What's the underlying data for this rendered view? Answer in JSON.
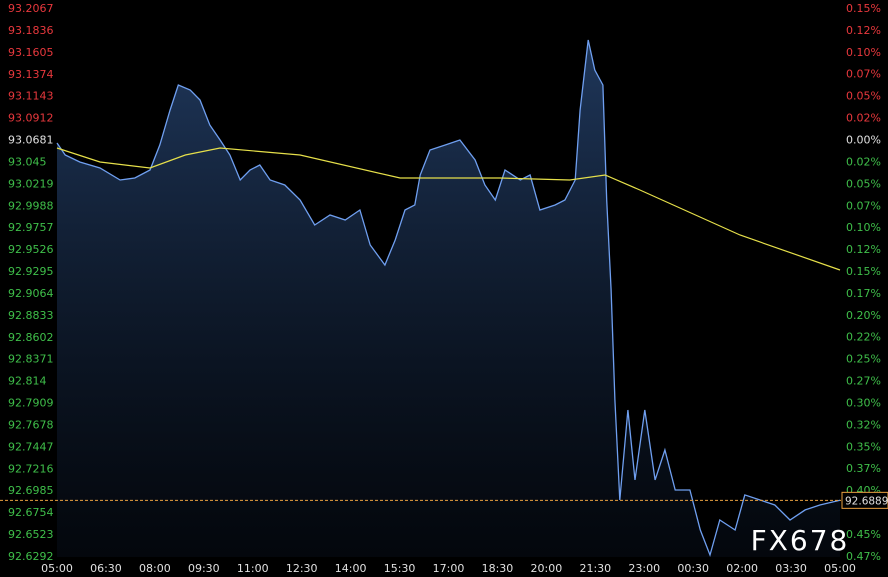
{
  "chart_data": {
    "type": "line",
    "watermark": "FX678",
    "base": 93.0681,
    "up_color": "#e8383d",
    "down_color": "#3fbf4a",
    "flat_color": "#e0e0e0",
    "xlim": [
      0,
      1440
    ],
    "xticks": [
      {
        "value": 0,
        "label": "05:00"
      },
      {
        "value": 90,
        "label": "06:30"
      },
      {
        "value": 180,
        "label": "08:00"
      },
      {
        "value": 270,
        "label": "09:30"
      },
      {
        "value": 360,
        "label": "11:00"
      },
      {
        "value": 450,
        "label": "12:30"
      },
      {
        "value": 540,
        "label": "14:00"
      },
      {
        "value": 630,
        "label": "15:30"
      },
      {
        "value": 720,
        "label": "17:00"
      },
      {
        "value": 810,
        "label": "18:30"
      },
      {
        "value": 900,
        "label": "20:00"
      },
      {
        "value": 990,
        "label": "21:30"
      },
      {
        "value": 1080,
        "label": "23:00"
      },
      {
        "value": 1170,
        "label": "00:30"
      },
      {
        "value": 1260,
        "label": "02:00"
      },
      {
        "value": 1350,
        "label": "03:30"
      },
      {
        "value": 1440,
        "label": "05:00"
      }
    ],
    "ylim": [
      92.6292,
      93.2067
    ],
    "yticks": [
      93.2067,
      93.1836,
      93.1605,
      93.1374,
      93.1143,
      93.0912,
      93.0681,
      93.045,
      93.0219,
      92.9988,
      92.9757,
      92.9526,
      92.9295,
      92.9064,
      92.8833,
      92.8602,
      92.8371,
      92.814,
      92.7909,
      92.7678,
      92.7447,
      92.7216,
      92.6985,
      92.6754,
      92.6523,
      92.6292
    ],
    "y2lim": [
      -0.4716,
      0.1489
    ],
    "y2ticks": [
      {
        "value": 0.1489,
        "label": "0.15%"
      },
      {
        "value": 0.1241,
        "label": "0.12%"
      },
      {
        "value": 0.0993,
        "label": "0.10%"
      },
      {
        "value": 0.0745,
        "label": "0.07%"
      },
      {
        "value": 0.0496,
        "label": "0.05%"
      },
      {
        "value": 0.0248,
        "label": "0.02%"
      },
      {
        "value": 0,
        "label": "0.00%"
      },
      {
        "value": -0.0248,
        "label": "0.02%"
      },
      {
        "value": -0.0496,
        "label": "0.05%"
      },
      {
        "value": -0.0745,
        "label": "0.07%"
      },
      {
        "value": -0.0993,
        "label": "0.10%"
      },
      {
        "value": -0.1241,
        "label": "0.12%"
      },
      {
        "value": -0.1489,
        "label": "0.15%"
      },
      {
        "value": -0.1737,
        "label": "0.17%"
      },
      {
        "value": -0.1985,
        "label": "0.20%"
      },
      {
        "value": -0.2233,
        "label": "0.22%"
      },
      {
        "value": -0.2482,
        "label": "0.25%"
      },
      {
        "value": -0.273,
        "label": "0.27%"
      },
      {
        "value": -0.2978,
        "label": "0.30%"
      },
      {
        "value": -0.3226,
        "label": "0.32%"
      },
      {
        "value": -0.3474,
        "label": "0.35%"
      },
      {
        "value": -0.3722,
        "label": "0.37%"
      },
      {
        "value": -0.397,
        "label": "0.40%"
      },
      {
        "value": -0.4467,
        "label": "0.45%"
      },
      {
        "value": -0.4716,
        "label": "0.47%"
      }
    ],
    "last_price": 92.6889,
    "last_color": "#e8a040",
    "series": [
      {
        "color": "#6f9ff0",
        "fill": true,
        "x": [
          0,
          15,
          42,
          79,
          116,
          143,
          171,
          189,
          208,
          223,
          245,
          263,
          281,
          300,
          318,
          337,
          355,
          373,
          392,
          419,
          447,
          474,
          502,
          530,
          557,
          576,
          603,
          622,
          640,
          658,
          668,
          686,
          714,
          741,
          769,
          787,
          806,
          824,
          852,
          870,
          888,
          916,
          934,
          953,
          962,
          977,
          989,
          1004,
          1011,
          1019,
          1026,
          1035,
          1050,
          1063,
          1081,
          1100,
          1118,
          1137,
          1164,
          1183,
          1201,
          1219,
          1247,
          1265,
          1293,
          1320,
          1348,
          1376,
          1403,
          1440
        ],
        "values": [
          93.0655,
          93.0528,
          93.0455,
          93.0391,
          93.0265,
          93.0286,
          93.037,
          93.0634,
          93.1003,
          93.1266,
          93.1213,
          93.1108,
          93.0845,
          93.0687,
          93.0528,
          93.0265,
          93.037,
          93.0423,
          93.0265,
          93.0212,
          93.0054,
          92.9791,
          92.9896,
          92.9843,
          92.9949,
          92.958,
          92.9369,
          92.9633,
          92.9949,
          93.0002,
          93.0318,
          93.0581,
          93.0634,
          93.0687,
          93.0476,
          93.0212,
          93.0054,
          93.037,
          93.0265,
          93.0318,
          92.9949,
          93.0002,
          93.0054,
          93.0265,
          93.1003,
          93.174,
          93.1424,
          93.1266,
          93.0054,
          92.9106,
          92.7947,
          92.6893,
          92.7841,
          92.7104,
          92.7841,
          92.7104,
          92.742,
          92.6998,
          92.6998,
          92.6577,
          92.6313,
          92.6682,
          92.6577,
          92.6946,
          92.6893,
          92.684,
          92.6682,
          92.6788,
          92.684,
          92.6889
        ]
      },
      {
        "color": "#e6e04a",
        "fill": false,
        "x": [
          0,
          79,
          171,
          236,
          300,
          447,
          631,
          815,
          943,
          1008,
          1072,
          1256,
          1440
        ],
        "values": [
          93.0602,
          93.0455,
          93.0391,
          93.0528,
          93.0602,
          93.0528,
          93.0286,
          93.0286,
          93.0265,
          93.0318,
          93.016,
          92.9685,
          92.9317
        ]
      }
    ]
  }
}
